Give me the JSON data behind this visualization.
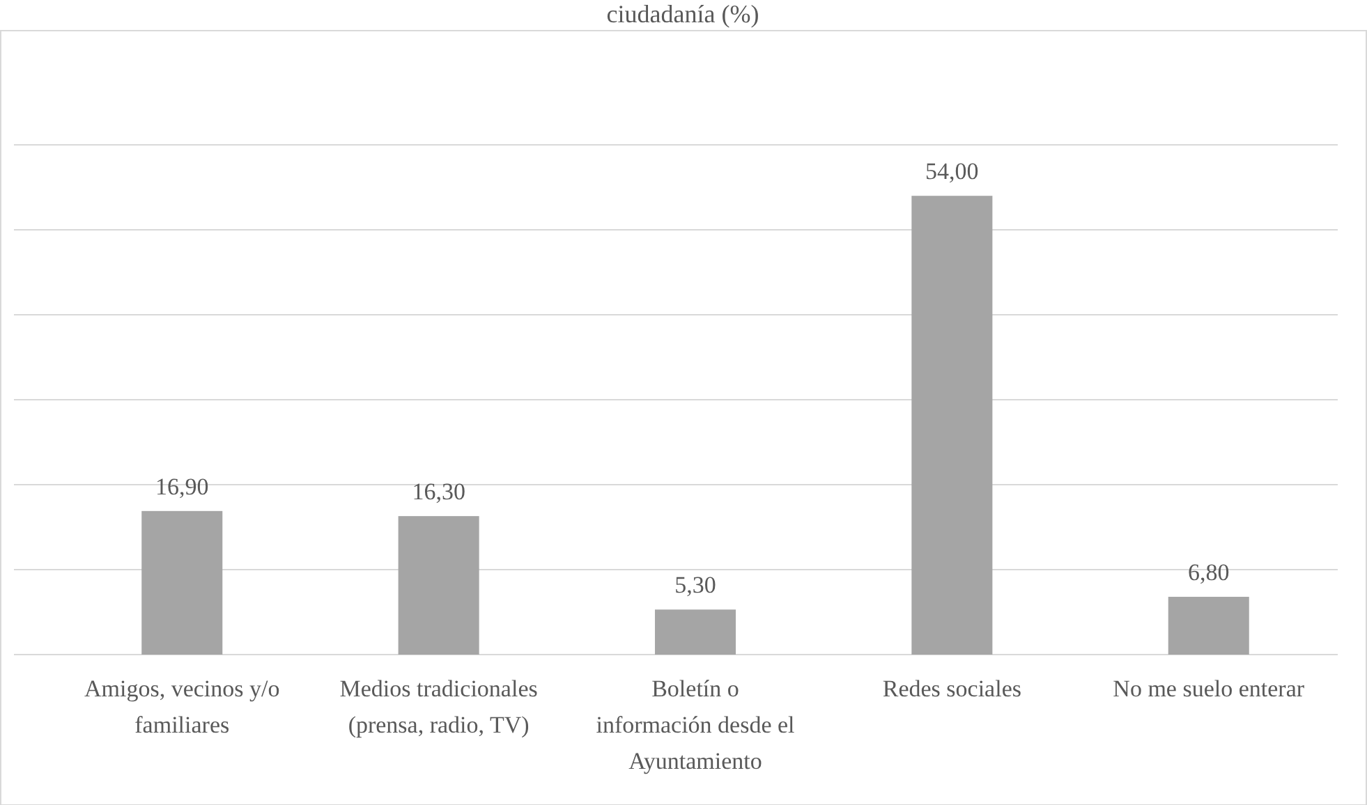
{
  "chart_data": {
    "type": "bar",
    "title": "ciudadanía (%)",
    "categories": [
      "Amigos, vecinos y/o familiares",
      "Medios tradicionales (prensa, radio, TV)",
      "Boletín o información desde el Ayuntamiento",
      "Redes sociales",
      "No me suelo enterar"
    ],
    "values": [
      16.9,
      16.3,
      5.3,
      54.0,
      6.8
    ],
    "value_labels": [
      "16,90",
      "16,30",
      "5,30",
      "54,00",
      "6,80"
    ],
    "color": "#a5a5a5",
    "ylim": [
      0,
      60
    ],
    "yticks": [
      {
        "value": 0,
        "label": null
      },
      {
        "value": 10,
        "label": null
      },
      {
        "value": 20,
        "label": null
      },
      {
        "value": 30,
        "label": null
      },
      {
        "value": 40,
        "label": null
      },
      {
        "value": 50,
        "label": null
      },
      {
        "value": 60,
        "label": null
      }
    ],
    "grid": "y",
    "tick_labels": "x"
  }
}
